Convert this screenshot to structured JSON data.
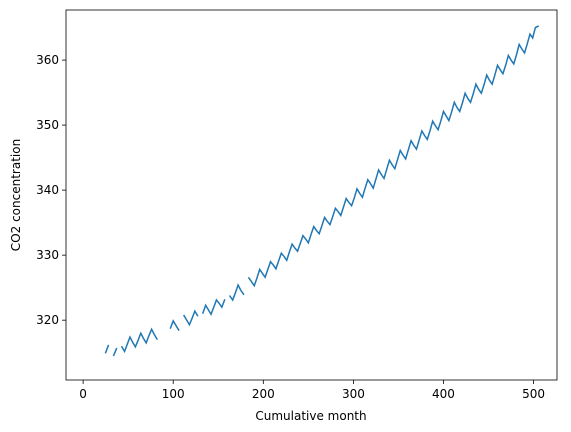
{
  "chart_data": {
    "type": "line",
    "x_label": "Cumulative month",
    "y_label": "CO2 concentration",
    "x": [
      25,
      28,
      31,
      34,
      37,
      40,
      43,
      46,
      49,
      52,
      55,
      58,
      61,
      64,
      67,
      70,
      73,
      76,
      79,
      82,
      85,
      88,
      91,
      94,
      97,
      100,
      103,
      106,
      109,
      112,
      115,
      118,
      121,
      124,
      127,
      130,
      133,
      136,
      139,
      142,
      145,
      148,
      151,
      154,
      157,
      160,
      163,
      166,
      169,
      172,
      175,
      178,
      181,
      184,
      187,
      190,
      193,
      196,
      199,
      202,
      205,
      208,
      211,
      214,
      217,
      220,
      223,
      226,
      229,
      232,
      235,
      238,
      241,
      244,
      247,
      250,
      253,
      256,
      259,
      262,
      265,
      268,
      271,
      274,
      277,
      280,
      283,
      286,
      289,
      292,
      295,
      298,
      301,
      304,
      307,
      310,
      313,
      316,
      319,
      322,
      325,
      328,
      331,
      334,
      337,
      340,
      343,
      346,
      349,
      352,
      355,
      358,
      361,
      364,
      367,
      370,
      373,
      376,
      379,
      382,
      385,
      388,
      391,
      394,
      397,
      400,
      403,
      406,
      409,
      412,
      415,
      418,
      421,
      424,
      427,
      430,
      433,
      436,
      439,
      442,
      445,
      448,
      451,
      454,
      457,
      460,
      463,
      466,
      469,
      472,
      475,
      478,
      481,
      484,
      487,
      490,
      493,
      496,
      499,
      502,
      505
    ],
    "series": [
      {
        "color": "#1f77b4",
        "values": [
          315.0,
          316.1,
          null,
          314.6,
          315.6,
          null,
          315.9,
          315.2,
          316.3,
          317.4,
          316.6,
          315.9,
          316.9,
          318.0,
          317.2,
          316.5,
          317.6,
          318.6,
          317.8,
          317.1,
          null,
          null,
          null,
          null,
          318.8,
          319.9,
          319.2,
          318.5,
          null,
          320.7,
          320.0,
          319.3,
          320.3,
          321.4,
          320.7,
          null,
          321.1,
          322.3,
          321.6,
          320.9,
          322.0,
          323.1,
          322.6,
          322.0,
          323.1,
          null,
          323.7,
          323.1,
          324.2,
          325.4,
          324.6,
          324.0,
          null,
          326.5,
          325.9,
          325.3,
          326.5,
          327.8,
          327.2,
          326.6,
          327.8,
          329.0,
          328.5,
          327.9,
          329.1,
          330.3,
          329.8,
          329.2,
          330.5,
          331.7,
          331.1,
          330.6,
          331.8,
          333.0,
          332.5,
          331.9,
          333.2,
          334.4,
          333.8,
          333.3,
          334.5,
          335.8,
          335.2,
          334.7,
          335.9,
          337.2,
          336.7,
          336.1,
          337.4,
          338.7,
          338.1,
          337.6,
          338.8,
          340.2,
          339.5,
          338.9,
          340.3,
          341.6,
          341.0,
          340.3,
          341.7,
          343.1,
          342.4,
          341.8,
          343.2,
          344.6,
          343.9,
          343.3,
          344.7,
          346.1,
          345.4,
          344.8,
          346.2,
          347.6,
          346.9,
          346.3,
          347.7,
          349.1,
          348.4,
          347.8,
          349.1,
          350.6,
          349.9,
          349.3,
          350.6,
          352.1,
          351.4,
          350.7,
          352.0,
          353.5,
          352.7,
          352.1,
          353.4,
          354.9,
          354.1,
          353.5,
          354.8,
          356.3,
          355.5,
          354.9,
          356.2,
          357.7,
          356.9,
          356.3,
          357.7,
          359.2,
          358.5,
          357.9,
          359.2,
          360.7,
          360.0,
          359.4,
          360.8,
          362.4,
          361.7,
          361.1,
          362.5,
          364.0,
          363.4,
          365.0,
          365.2
        ]
      }
    ],
    "xlim": [
      -19,
      526
    ],
    "ylim": [
      310.8,
      367.7
    ],
    "xticks": [
      0,
      100,
      200,
      300,
      400,
      500
    ],
    "yticks": [
      320,
      330,
      340,
      350,
      360
    ]
  }
}
